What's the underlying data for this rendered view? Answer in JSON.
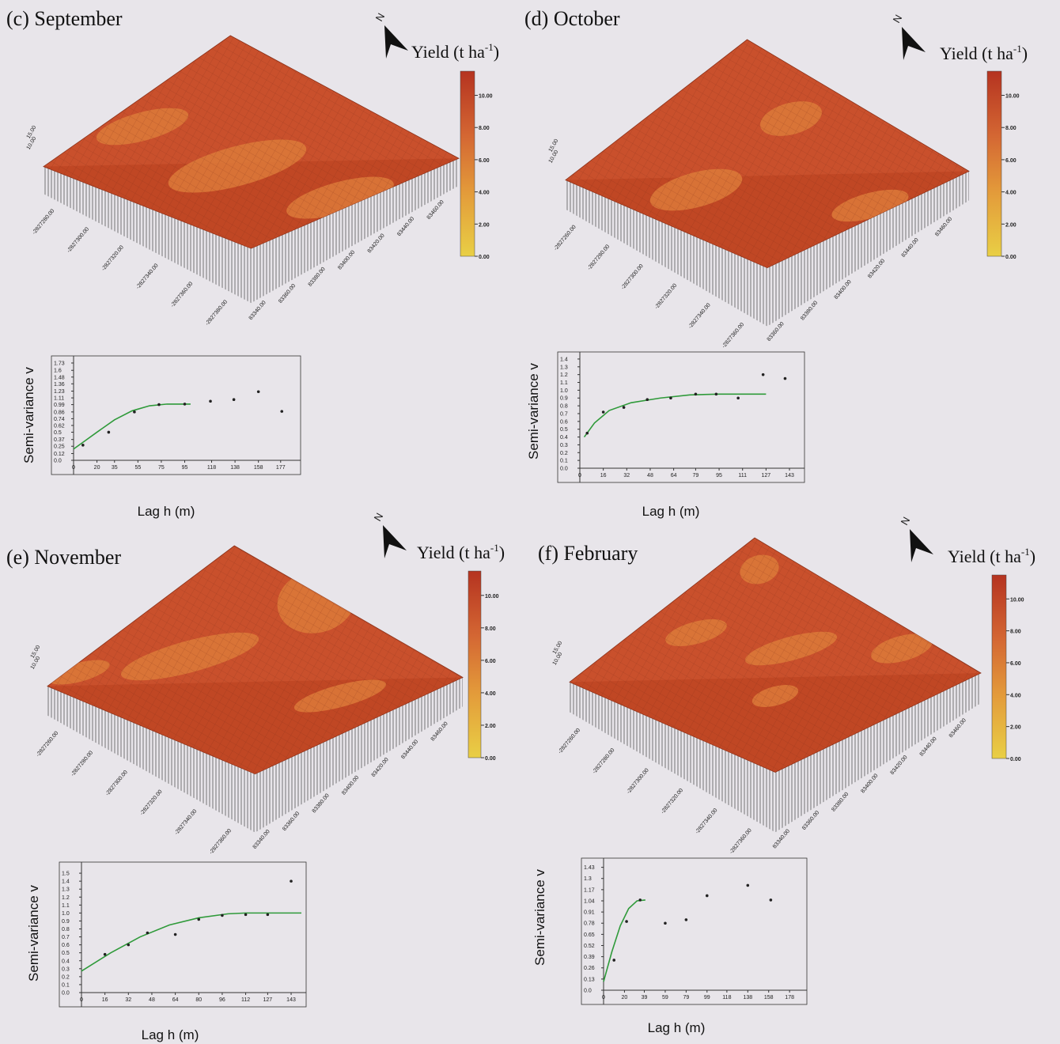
{
  "panels": [
    {
      "label": "(c) September",
      "north": "N",
      "legend_title": [
        "Yield (t ha",
        "-1",
        ")"
      ],
      "legend_lim": [
        0,
        11.5
      ],
      "legend_ticks": [
        {
          "value": 10,
          "label": "10.00"
        },
        {
          "value": 8,
          "label": "8.00"
        },
        {
          "value": 6,
          "label": "6.00"
        },
        {
          "value": 4,
          "label": "4.00"
        },
        {
          "value": 2,
          "label": "2.00"
        },
        {
          "value": 0,
          "label": "0.00"
        }
      ],
      "surface": {
        "z_ticks": [
          "15.00",
          "10.00"
        ],
        "y_ticks": [
          "-2827280.00",
          "-2827300.00",
          "-2827320.00",
          "-2827340.00",
          "-2827360.00",
          "-2827380.00"
        ],
        "x_ticks": [
          "83340.00",
          "83360.00",
          "83380.00",
          "83400.00",
          "83420.00",
          "83440.00",
          "83460.00"
        ]
      },
      "semivariogram": {
        "y_label": "Semi-variance v",
        "x_label": "Lag h (m)",
        "xlim": [
          0,
          190
        ],
        "ylim": [
          0,
          1.8
        ],
        "xticks": [
          0,
          20,
          35,
          55,
          75,
          95,
          118,
          138,
          158,
          177
        ],
        "yticks": [
          {
            "value": 0,
            "label": "0.0"
          },
          0.12,
          0.25,
          0.37,
          0.5,
          0.62,
          0.74,
          0.86,
          0.99,
          1.11,
          1.23,
          1.36,
          1.48,
          1.6,
          1.73
        ],
        "points_x": [
          8,
          30,
          52,
          73,
          95,
          117,
          137,
          158,
          178
        ],
        "points": [
          0.27,
          0.5,
          0.86,
          0.99,
          1.0,
          1.05,
          1.08,
          1.22,
          0.87
        ],
        "model_x": [
          0,
          10,
          20,
          35,
          50,
          65,
          80,
          100
        ],
        "model": [
          0.2,
          0.35,
          0.5,
          0.72,
          0.88,
          0.97,
          1.0,
          1.0
        ]
      }
    },
    {
      "label": "(d) October",
      "north": "N",
      "legend_title": [
        "Yield (t ha",
        "-1",
        ")"
      ],
      "legend_lim": [
        0,
        11.5
      ],
      "legend_ticks": [
        {
          "value": 10,
          "label": "10.00"
        },
        {
          "value": 8,
          "label": "8.00"
        },
        {
          "value": 6,
          "label": "6.00"
        },
        {
          "value": 4,
          "label": "4.00"
        },
        {
          "value": 2,
          "label": "2.00"
        },
        {
          "value": 0,
          "label": "0.00"
        }
      ],
      "surface": {
        "z_ticks": [
          "15.00",
          "10.00"
        ],
        "y_ticks": [
          "-2827260.00",
          "-2827280.00",
          "-2827300.00",
          "-2827320.00",
          "-2827340.00",
          "-2827360.00"
        ],
        "x_ticks": [
          "83360.00",
          "83380.00",
          "83400.00",
          "83420.00",
          "83440.00",
          "83460.00"
        ]
      },
      "semivariogram": {
        "y_label": "Semi-variance v",
        "x_label": "Lag h (m)",
        "xlim": [
          0,
          150
        ],
        "ylim": [
          0,
          1.45
        ],
        "xticks": [
          0,
          16,
          32,
          48,
          64,
          79,
          95,
          111,
          127,
          143
        ],
        "yticks": [
          {
            "value": 0,
            "label": "0.0"
          },
          0.1,
          0.2,
          0.3,
          0.4,
          0.5,
          0.6,
          0.7,
          0.8,
          0.9,
          {
            "value": 1,
            "label": "1.0"
          },
          1.1,
          1.2,
          1.3,
          1.4
        ],
        "points_x": [
          5,
          16,
          30,
          46,
          62,
          79,
          93,
          108,
          125,
          140
        ],
        "points": [
          0.45,
          0.72,
          0.78,
          0.88,
          0.9,
          0.95,
          0.95,
          0.9,
          1.2,
          1.15
        ],
        "model_x": [
          3,
          10,
          20,
          35,
          55,
          75,
          95,
          127
        ],
        "model": [
          0.4,
          0.58,
          0.74,
          0.84,
          0.9,
          0.94,
          0.95,
          0.95
        ]
      }
    },
    {
      "label": "(e) November",
      "north": "N",
      "legend_title": [
        "Yield (t ha",
        "-1",
        ")"
      ],
      "legend_lim": [
        0,
        11.5
      ],
      "legend_ticks": [
        {
          "value": 10,
          "label": "10.00"
        },
        {
          "value": 8,
          "label": "8.00"
        },
        {
          "value": 6,
          "label": "6.00"
        },
        {
          "value": 4,
          "label": "4.00"
        },
        {
          "value": 2,
          "label": "2.00"
        },
        {
          "value": 0,
          "label": "0.00"
        }
      ],
      "surface": {
        "z_ticks": [
          "15.00",
          "10.00"
        ],
        "y_ticks": [
          "-2827260.00",
          "-2827280.00",
          "-2827300.00",
          "-2827320.00",
          "-2827340.00",
          "-2827360.00"
        ],
        "x_ticks": [
          "83340.00",
          "83360.00",
          "83380.00",
          "83400.00",
          "83420.00",
          "83440.00",
          "83460.00"
        ]
      },
      "semivariogram": {
        "y_label": "Semi-variance v",
        "x_label": "Lag h (m)",
        "xlim": [
          0,
          150
        ],
        "ylim": [
          0,
          1.6
        ],
        "xticks": [
          0,
          16,
          32,
          48,
          64,
          80,
          96,
          112,
          127,
          143
        ],
        "yticks": [
          {
            "value": 0,
            "label": "0.0"
          },
          0.1,
          0.2,
          0.3,
          0.4,
          0.5,
          0.6,
          0.7,
          0.8,
          0.9,
          {
            "value": 1,
            "label": "1.0"
          },
          1.1,
          1.2,
          1.3,
          1.4,
          1.5
        ],
        "points_x": [
          16,
          32,
          45,
          64,
          80,
          96,
          112,
          127,
          143
        ],
        "points": [
          0.48,
          0.6,
          0.75,
          0.73,
          0.92,
          0.97,
          0.98,
          0.98,
          1.4
        ],
        "model_x": [
          0,
          20,
          40,
          60,
          80,
          100,
          112,
          150
        ],
        "model": [
          0.27,
          0.5,
          0.7,
          0.85,
          0.94,
          0.99,
          1.0,
          1.0
        ]
      }
    },
    {
      "label": "(f) February",
      "north": "N",
      "legend_title": [
        "Yield (t ha",
        "-1",
        ")"
      ],
      "legend_lim": [
        0,
        11.5
      ],
      "legend_ticks": [
        {
          "value": 10,
          "label": "10.00"
        },
        {
          "value": 8,
          "label": "8.00"
        },
        {
          "value": 6,
          "label": "6.00"
        },
        {
          "value": 4,
          "label": "4.00"
        },
        {
          "value": 2,
          "label": "2.00"
        },
        {
          "value": 0,
          "label": "0.00"
        }
      ],
      "surface": {
        "z_ticks": [
          "15.00",
          "10.00"
        ],
        "y_ticks": [
          "-2827260.00",
          "-2827280.00",
          "-2827300.00",
          "-2827320.00",
          "-2827340.00",
          "-2827360.00"
        ],
        "x_ticks": [
          "83340.00",
          "83360.00",
          "83380.00",
          "83400.00",
          "83420.00",
          "83440.00",
          "83460.00"
        ]
      },
      "semivariogram": {
        "y_label": "Semi-variance v",
        "x_label": "Lag h (m)",
        "xlim": [
          0,
          190
        ],
        "ylim": [
          0,
          1.5
        ],
        "xticks": [
          0,
          20,
          39,
          59,
          79,
          99,
          118,
          138,
          158,
          178
        ],
        "yticks": [
          {
            "value": 0,
            "label": "0.0"
          },
          0.13,
          0.26,
          0.39,
          0.52,
          0.65,
          0.78,
          0.91,
          1.04,
          1.17,
          1.3,
          1.43
        ],
        "points_x": [
          10,
          22,
          35,
          59,
          79,
          99,
          138,
          160
        ],
        "points": [
          0.35,
          0.8,
          1.05,
          0.78,
          0.82,
          1.1,
          1.22,
          1.05
        ],
        "model_x": [
          0,
          8,
          16,
          24,
          32,
          40
        ],
        "model": [
          0.1,
          0.45,
          0.75,
          0.95,
          1.04,
          1.05
        ]
      }
    }
  ]
}
